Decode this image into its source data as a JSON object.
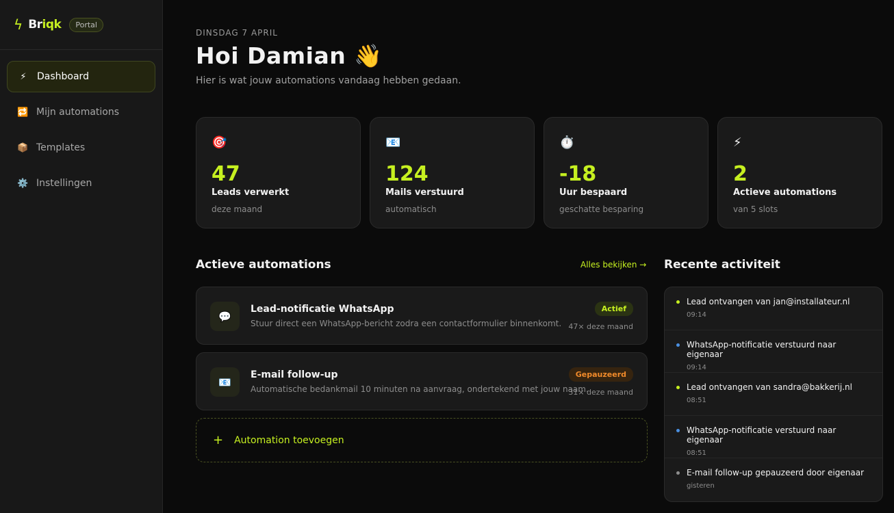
{
  "sidebar": {
    "brand_prefix": "Br",
    "brand_suffix": "iqk",
    "badge": "Portal",
    "items": [
      {
        "label": "Dashboard",
        "icon": "lightning-icon",
        "glyph": "⚡"
      },
      {
        "label": "Mijn automations",
        "icon": "repeat-icon",
        "glyph": "🔁"
      },
      {
        "label": "Templates",
        "icon": "package-icon",
        "glyph": "📦"
      },
      {
        "label": "Instellingen",
        "icon": "gear-icon",
        "glyph": "⚙️"
      }
    ]
  },
  "header": {
    "date": "DINSDAG 7 APRIL",
    "title": "Hoi Damian 👋",
    "subtitle": "Hier is wat jouw automations vandaag hebben gedaan."
  },
  "stats": [
    {
      "icon": "🎯",
      "value": "47",
      "label": "Leads verwerkt",
      "hint": "deze maand"
    },
    {
      "icon": "📧",
      "value": "124",
      "label": "Mails verstuurd",
      "hint": "automatisch"
    },
    {
      "icon": "⏱️",
      "value": "-18",
      "label": "Uur bespaard",
      "hint": "geschatte besparing"
    },
    {
      "icon": "⚡",
      "value": "2",
      "label": "Actieve automations",
      "hint": "van 5 slots"
    }
  ],
  "automations": {
    "heading": "Actieve automations",
    "see_all": "Alles bekijken →",
    "add_label": "Automation toevoegen",
    "add_icon": "+",
    "items": [
      {
        "icon": "💬",
        "name": "Lead-notificatie WhatsApp",
        "desc": "Stuur direct een WhatsApp-bericht zodra een contactformulier binnenkomt.",
        "status": "Actief",
        "count": "47× deze maand"
      },
      {
        "icon": "📧",
        "name": "E-mail follow-up",
        "desc": "Automatische bedankmail 10 minuten na aanvraag, ondertekend met jouw naam.",
        "status": "Gepauzeerd",
        "count": "31× deze maand"
      }
    ]
  },
  "activity": {
    "heading": "Recente activiteit",
    "items": [
      {
        "text": "Lead ontvangen van jan@installateur.nl",
        "time": "09:14",
        "color": "#c6f020"
      },
      {
        "text": "WhatsApp-notificatie verstuurd naar eigenaar",
        "time": "09:14",
        "color": "#4a90e2"
      },
      {
        "text": "Lead ontvangen van sandra@bakkerij.nl",
        "time": "08:51",
        "color": "#c6f020"
      },
      {
        "text": "WhatsApp-notificatie verstuurd naar eigenaar",
        "time": "08:51",
        "color": "#4a90e2"
      },
      {
        "text": "E-mail follow-up gepauzeerd door eigenaar",
        "time": "gisteren",
        "color": "#8d8d8d"
      }
    ]
  },
  "colors": {
    "accent": "#c6f020",
    "paused": "#f08a2a"
  }
}
